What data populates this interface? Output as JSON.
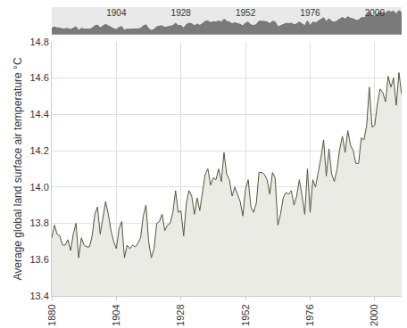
{
  "chart_data": {
    "type": "area",
    "y_title": "Average global land surface air temperature °C",
    "x": [
      1880,
      1881,
      1882,
      1883,
      1884,
      1885,
      1886,
      1887,
      1888,
      1889,
      1890,
      1891,
      1892,
      1893,
      1894,
      1895,
      1896,
      1897,
      1898,
      1899,
      1900,
      1901,
      1902,
      1903,
      1904,
      1905,
      1906,
      1907,
      1908,
      1909,
      1910,
      1911,
      1912,
      1913,
      1914,
      1915,
      1916,
      1917,
      1918,
      1919,
      1920,
      1921,
      1922,
      1923,
      1924,
      1925,
      1926,
      1927,
      1928,
      1929,
      1930,
      1931,
      1932,
      1933,
      1934,
      1935,
      1936,
      1937,
      1938,
      1939,
      1940,
      1941,
      1942,
      1943,
      1944,
      1945,
      1946,
      1947,
      1948,
      1949,
      1950,
      1951,
      1952,
      1953,
      1954,
      1955,
      1956,
      1957,
      1958,
      1959,
      1960,
      1961,
      1962,
      1963,
      1964,
      1965,
      1966,
      1967,
      1968,
      1969,
      1970,
      1971,
      1972,
      1973,
      1974,
      1975,
      1976,
      1977,
      1978,
      1979,
      1980,
      1981,
      1982,
      1983,
      1984,
      1985,
      1986,
      1987,
      1988,
      1989,
      1990,
      1991,
      1992,
      1993,
      1994,
      1995,
      1996,
      1997,
      1998,
      1999,
      2000,
      2001,
      2002,
      2003,
      2004,
      2005,
      2006,
      2007,
      2008,
      2009,
      2010
    ],
    "values": [
      13.72,
      13.79,
      13.74,
      13.73,
      13.68,
      13.68,
      13.71,
      13.65,
      13.74,
      13.8,
      13.61,
      13.72,
      13.68,
      13.67,
      13.67,
      13.73,
      13.85,
      13.89,
      13.74,
      13.84,
      13.92,
      13.85,
      13.76,
      13.7,
      13.66,
      13.77,
      13.81,
      13.61,
      13.68,
      13.66,
      13.68,
      13.67,
      13.69,
      13.72,
      13.84,
      13.9,
      13.7,
      13.61,
      13.66,
      13.8,
      13.81,
      13.85,
      13.76,
      13.79,
      13.8,
      13.86,
      13.98,
      13.86,
      13.87,
      13.73,
      13.91,
      13.98,
      13.95,
      13.85,
      13.94,
      13.87,
      13.96,
      14.07,
      14.1,
      14.01,
      14.05,
      14.04,
      14.1,
      14.03,
      14.19,
      14.07,
      14.04,
      13.95,
      14.0,
      13.96,
      13.92,
      13.84,
      13.99,
      14.04,
      13.89,
      13.86,
      13.91,
      14.08,
      14.08,
      14.07,
      14.04,
      13.96,
      14.08,
      14.05,
      13.79,
      13.85,
      13.94,
      13.97,
      13.96,
      13.98,
      13.9,
      13.95,
      14.04,
      13.95,
      13.85,
      14.1,
      13.86,
      14.04,
      14.0,
      14.08,
      14.16,
      14.26,
      14.06,
      14.21,
      14.07,
      14.03,
      14.1,
      14.21,
      14.28,
      14.19,
      14.31,
      14.23,
      14.2,
      14.13,
      14.13,
      14.27,
      14.26,
      14.34,
      14.55,
      14.33,
      14.34,
      14.46,
      14.54,
      14.52,
      14.47,
      14.61,
      14.55,
      14.6,
      14.45,
      14.63,
      14.51
    ],
    "color": "#55553b",
    "xlim": [
      1880,
      2010
    ],
    "xticks": [
      1880,
      1904,
      1928,
      1952,
      1976,
      2000
    ],
    "ylim": [
      13.4,
      14.8
    ],
    "yticks": [
      13.4,
      13.6,
      13.8,
      {
        "value": 14,
        "label": "14.0"
      },
      14.2,
      14.4,
      14.6,
      14.8
    ],
    "grid": true
  }
}
